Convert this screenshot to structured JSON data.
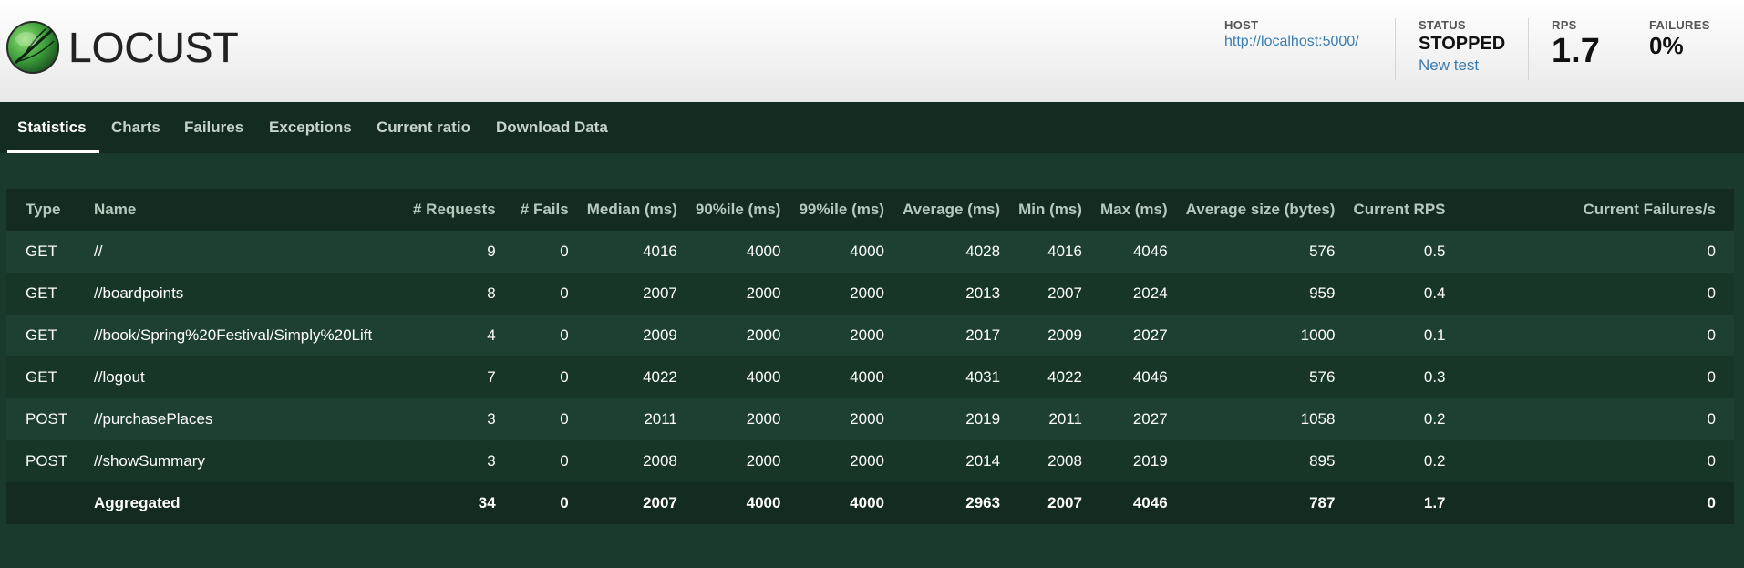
{
  "app": {
    "logo_text": "LOCUST"
  },
  "header": {
    "host_label": "HOST",
    "host_value": "http://localhost:5000/",
    "status_label": "STATUS",
    "status_value": "STOPPED",
    "new_test_label": "New test",
    "rps_label": "RPS",
    "rps_value": "1.7",
    "failures_label": "FAILURES",
    "failures_value": "0%"
  },
  "tabs": [
    {
      "label": "Statistics",
      "active": true
    },
    {
      "label": "Charts"
    },
    {
      "label": "Failures"
    },
    {
      "label": "Exceptions"
    },
    {
      "label": "Current ratio"
    },
    {
      "label": "Download Data"
    }
  ],
  "table": {
    "columns": [
      "Type",
      "Name",
      "# Requests",
      "# Fails",
      "Median (ms)",
      "90%ile (ms)",
      "99%ile (ms)",
      "Average (ms)",
      "Min (ms)",
      "Max (ms)",
      "Average size (bytes)",
      "Current RPS",
      "Current Failures/s"
    ],
    "rows": [
      [
        "GET",
        "//",
        "9",
        "0",
        "4016",
        "4000",
        "4000",
        "4028",
        "4016",
        "4046",
        "576",
        "0.5",
        "0"
      ],
      [
        "GET",
        "//boardpoints",
        "8",
        "0",
        "2007",
        "2000",
        "2000",
        "2013",
        "2007",
        "2024",
        "959",
        "0.4",
        "0"
      ],
      [
        "GET",
        "//book/Spring%20Festival/Simply%20Lift",
        "4",
        "0",
        "2009",
        "2000",
        "2000",
        "2017",
        "2009",
        "2027",
        "1000",
        "0.1",
        "0"
      ],
      [
        "GET",
        "//logout",
        "7",
        "0",
        "4022",
        "4000",
        "4000",
        "4031",
        "4022",
        "4046",
        "576",
        "0.3",
        "0"
      ],
      [
        "POST",
        "//purchasePlaces",
        "3",
        "0",
        "2011",
        "2000",
        "2000",
        "2019",
        "2011",
        "2027",
        "1058",
        "0.2",
        "0"
      ],
      [
        "POST",
        "//showSummary",
        "3",
        "0",
        "2008",
        "2000",
        "2000",
        "2014",
        "2008",
        "2019",
        "895",
        "0.2",
        "0"
      ]
    ],
    "aggregated": [
      "",
      "Aggregated",
      "34",
      "0",
      "2007",
      "4000",
      "4000",
      "2963",
      "2007",
      "4046",
      "787",
      "1.7",
      "0"
    ]
  },
  "colors": {
    "header_bg": "#f0f0f0",
    "body_bg": "#1a3a2d",
    "tab_bar_bg": "#142b21",
    "link": "#3a7db0"
  },
  "icons": {
    "logo": "locust-logo-icon"
  }
}
